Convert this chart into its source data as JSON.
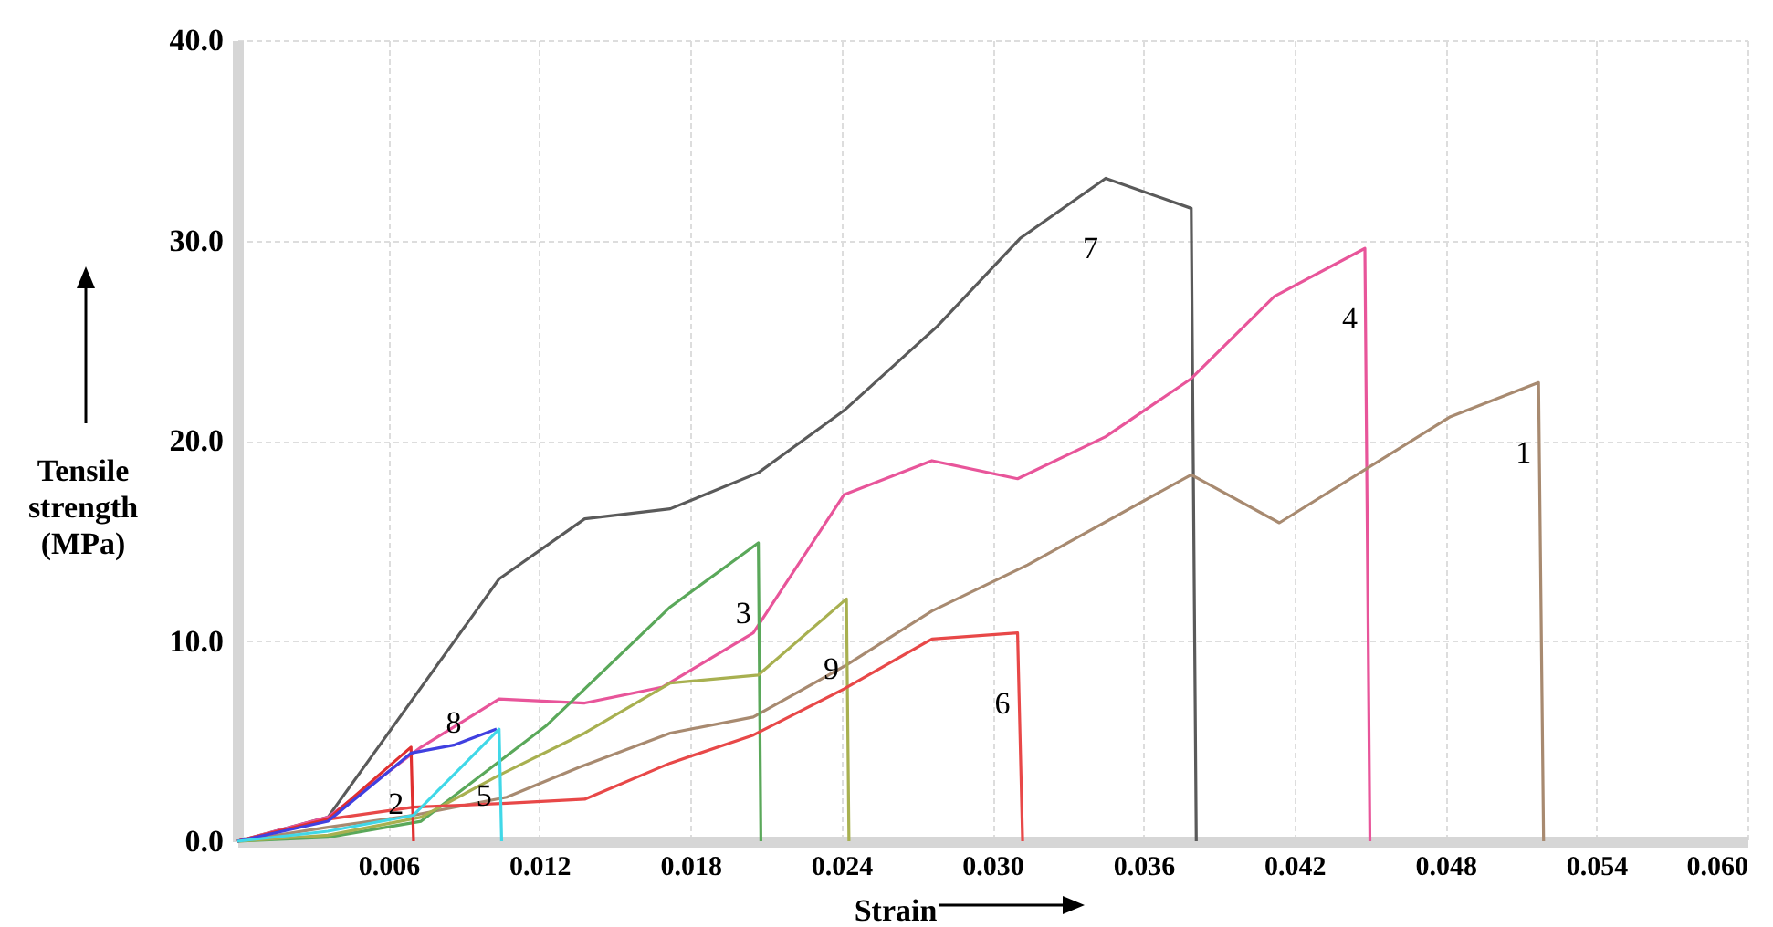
{
  "chart_data": {
    "type": "line",
    "xlabel": "Strain",
    "ylabel": "Tensile strength (MPa)",
    "xlim": [
      0,
      0.06
    ],
    "xticks": [
      0.006,
      0.012,
      0.018,
      0.024,
      {
        "value": 0.03,
        "label": "0.030"
      },
      0.036,
      0.042,
      0.048,
      0.054,
      {
        "value": 0.06,
        "label": "0.060"
      }
    ],
    "ylim": [
      0,
      40
    ],
    "yticks": [
      {
        "value": 0,
        "label": "0.0"
      },
      {
        "value": 10,
        "label": "10.0"
      },
      {
        "value": 20,
        "label": "20.0"
      },
      {
        "value": 30,
        "label": "30.0"
      },
      {
        "value": 40,
        "label": "40.0"
      }
    ],
    "grid": true,
    "legend": false,
    "marker": "none",
    "line_style": "solid",
    "series": [
      {
        "name": "7",
        "color": "#5a5a5a",
        "x": [
          0,
          0.0036,
          0.0104,
          0.0138,
          0.0172,
          0.0207,
          0.0241,
          0.0278,
          0.0311,
          0.0345,
          0.0379,
          0.0381
        ],
        "values": [
          0,
          1.2,
          13.1,
          16.1,
          16.6,
          18.4,
          21.5,
          25.7,
          30.1,
          33.1,
          31.6,
          0
        ]
      },
      {
        "name": "4",
        "color": "#e8559a",
        "x": [
          0,
          0.0036,
          0.0073,
          0.0104,
          0.0138,
          0.0169,
          0.0205,
          0.0241,
          0.0276,
          0.031,
          0.0345,
          0.0379,
          0.0412,
          0.0448,
          0.045
        ],
        "values": [
          0,
          1.2,
          4.7,
          7.1,
          6.9,
          7.7,
          10.4,
          17.3,
          19.0,
          18.1,
          20.2,
          23.1,
          27.2,
          29.6,
          0
        ]
      },
      {
        "name": "1",
        "color": "#a88a70",
        "x": [
          0,
          0.0036,
          0.007,
          0.0107,
          0.0136,
          0.0172,
          0.0205,
          0.0242,
          0.0276,
          0.0314,
          0.0379,
          0.0414,
          0.0482,
          0.0517,
          0.0519
        ],
        "values": [
          0,
          0.7,
          1.3,
          2.2,
          3.7,
          5.4,
          6.2,
          8.8,
          11.5,
          13.8,
          18.3,
          15.9,
          21.2,
          22.9,
          0
        ]
      },
      {
        "name": "3",
        "color": "#5aa85a",
        "x": [
          0,
          0.0036,
          0.0073,
          0.0123,
          0.0172,
          0.0207,
          0.0208
        ],
        "values": [
          0,
          0.2,
          1.0,
          5.8,
          11.7,
          14.9,
          0
        ]
      },
      {
        "name": "9",
        "color": "#a8b050",
        "x": [
          0,
          0.0036,
          0.0073,
          0.0104,
          0.0138,
          0.0172,
          0.0207,
          0.0242,
          0.0243
        ],
        "values": [
          0,
          0.3,
          1.2,
          3.3,
          5.4,
          7.9,
          8.3,
          12.1,
          0
        ]
      },
      {
        "name": "6",
        "color": "#e84848",
        "x": [
          0,
          0.0036,
          0.007,
          0.0107,
          0.0138,
          0.0172,
          0.0205,
          0.0241,
          0.0276,
          0.031,
          0.0312
        ],
        "values": [
          0,
          1.1,
          1.7,
          1.9,
          2.1,
          3.9,
          5.3,
          7.6,
          10.1,
          10.4,
          0
        ]
      },
      {
        "name": "2",
        "color": "#e03030",
        "x": [
          0,
          0.0036,
          0.0069,
          0.007
        ],
        "values": [
          0,
          1.1,
          4.7,
          0
        ]
      },
      {
        "name": "8",
        "color": "#4040e0",
        "x": [
          0,
          0.0036,
          0.0069,
          0.0086,
          0.0103
        ],
        "values": [
          0,
          1.0,
          4.4,
          4.8,
          5.6
        ]
      },
      {
        "name": "5",
        "color": "#40d8e8",
        "x": [
          0,
          0.0036,
          0.007,
          0.0104,
          0.0105
        ],
        "values": [
          0,
          0.5,
          1.3,
          5.6,
          0
        ]
      }
    ]
  }
}
